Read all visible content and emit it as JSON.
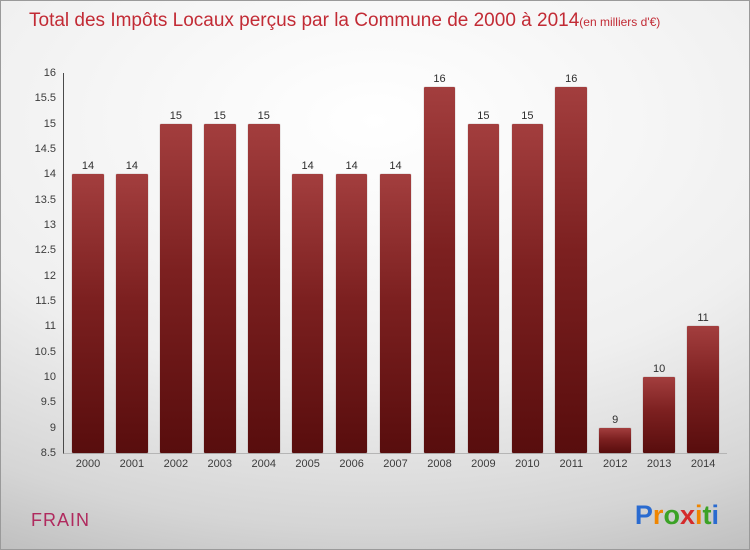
{
  "title": "Total des Impôts Locaux perçus par la Commune de 2000 à 2014",
  "subtitle": "(en milliers d'€)",
  "footer": {
    "commune": "FRAIN"
  },
  "logo": {
    "name": "Proxiti",
    "letters": [
      {
        "ch": "P",
        "color": "#2a6bd0"
      },
      {
        "ch": "r",
        "color": "#ef8500"
      },
      {
        "ch": "o",
        "color": "#3ba226"
      },
      {
        "ch": "x",
        "color": "#d42a2a"
      },
      {
        "ch": "i",
        "color": "#ef8500"
      },
      {
        "ch": "t",
        "color": "#3ba226"
      },
      {
        "ch": "i",
        "color": "#2a6bd0"
      }
    ]
  },
  "colors": {
    "title": "#c22b35",
    "commune": "#b02a5e",
    "axis_text": "#3c3c3c",
    "bar_top": "#a33e3e",
    "bar_mid": "#7c2020",
    "bar_bottom": "#580d0d"
  },
  "chart_data": {
    "type": "bar",
    "title": "Total des Impôts Locaux perçus par la Commune de 2000 à 2014",
    "subtitle": "(en milliers d'€)",
    "categories": [
      "2000",
      "2001",
      "2002",
      "2003",
      "2004",
      "2005",
      "2006",
      "2007",
      "2008",
      "2009",
      "2010",
      "2011",
      "2012",
      "2013",
      "2014"
    ],
    "values": [
      14,
      14,
      15,
      15,
      15,
      14,
      14,
      14,
      16,
      15,
      15,
      16,
      9,
      10,
      11
    ],
    "xlabel": "",
    "ylabel": "",
    "ylim": [
      8.5,
      16
    ],
    "ytick_step": 0.5,
    "grid": false,
    "legend": false,
    "value_labels": true
  }
}
